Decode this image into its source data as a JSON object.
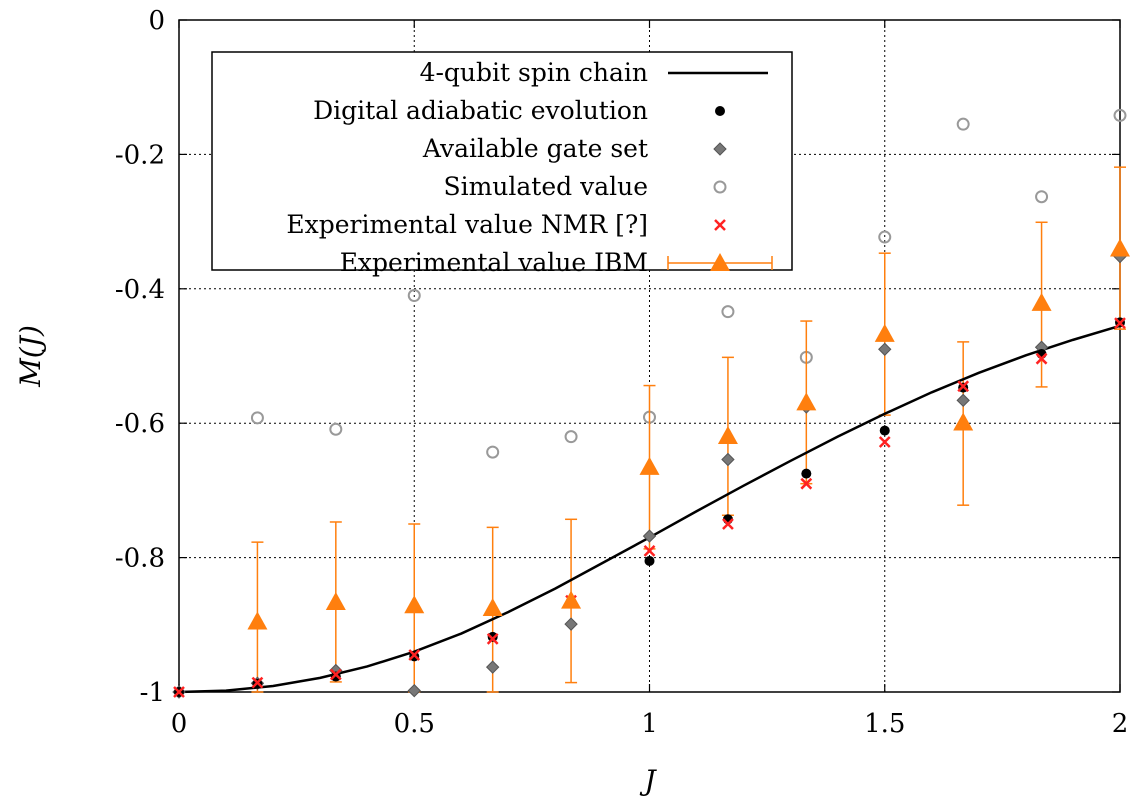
{
  "chart_data": {
    "type": "scatter",
    "xlabel": "J",
    "ylabel": "M(J)",
    "xlim": [
      0,
      2
    ],
    "ylim": [
      -1,
      0
    ],
    "x_ticks": [
      0,
      0.5,
      1,
      1.5,
      2
    ],
    "x_tick_labels": [
      "0",
      "0.5",
      "1",
      "1.5",
      "2"
    ],
    "y_ticks": [
      0,
      -0.2,
      -0.4,
      -0.6,
      -0.8,
      -1
    ],
    "y_tick_labels": [
      "0",
      "-0.2",
      "-0.4",
      "-0.6",
      "-0.8",
      "-1"
    ],
    "grid": true,
    "legend_position": "top-left",
    "series": [
      {
        "name": "4-qubit spin chain",
        "kind": "line",
        "color": "#000000",
        "x": [
          0,
          0.1,
          0.2,
          0.3,
          0.4,
          0.5,
          0.6,
          0.7,
          0.8,
          0.9,
          1.0,
          1.1,
          1.2,
          1.3,
          1.4,
          1.5,
          1.6,
          1.7,
          1.8,
          1.9,
          2.0
        ],
        "y": [
          -1.0,
          -0.998,
          -0.991,
          -0.979,
          -0.962,
          -0.94,
          -0.913,
          -0.881,
          -0.846,
          -0.808,
          -0.77,
          -0.731,
          -0.693,
          -0.656,
          -0.62,
          -0.586,
          -0.554,
          -0.525,
          -0.499,
          -0.476,
          -0.455
        ]
      },
      {
        "name": "Digital adiabatic evolution",
        "kind": "dot",
        "color": "#000000",
        "x": [
          0,
          0.1667,
          0.3333,
          0.5,
          0.6667,
          0.8333,
          1.0,
          1.1667,
          1.3333,
          1.5,
          1.6667,
          1.8333,
          2.0
        ],
        "y": [
          -1.0,
          -0.988,
          -0.977,
          -0.947,
          -0.918,
          -0.865,
          -0.805,
          -0.743,
          -0.675,
          -0.611,
          -0.547,
          -0.497,
          -0.45
        ]
      },
      {
        "name": "Available gate set",
        "kind": "diamond",
        "color": "#777777",
        "x": [
          0,
          0.1667,
          0.3333,
          0.5,
          0.6667,
          0.8333,
          1.0,
          1.1667,
          1.3333,
          1.5,
          1.6667,
          1.8333,
          2.0
        ],
        "y": [
          -1.0,
          -0.987,
          -0.968,
          -0.998,
          -0.963,
          -0.899,
          -0.768,
          -0.654,
          -0.576,
          -0.49,
          -0.566,
          -0.487,
          -0.352
        ]
      },
      {
        "name": "Simulated value",
        "kind": "circle",
        "color": "#999999",
        "x": [
          0.1667,
          0.3333,
          0.5,
          0.6667,
          0.8333,
          1.0,
          1.1667,
          1.3333,
          1.5,
          1.6667,
          1.8333,
          2.0
        ],
        "y": [
          -0.592,
          -0.609,
          -0.41,
          -0.643,
          -0.62,
          -0.591,
          -0.434,
          -0.502,
          -0.323,
          -0.155,
          -0.263,
          -0.142
        ]
      },
      {
        "name": "Experimental value NMR [?]",
        "kind": "cross",
        "color": "#ff2222",
        "x": [
          0,
          0.1667,
          0.3333,
          0.5,
          0.6667,
          0.8333,
          1.0,
          1.1667,
          1.3333,
          1.5,
          1.6667,
          1.8333,
          2.0
        ],
        "y": [
          -1.0,
          -0.986,
          -0.974,
          -0.945,
          -0.921,
          -0.864,
          -0.79,
          -0.75,
          -0.69,
          -0.628,
          -0.545,
          -0.504,
          -0.451
        ]
      },
      {
        "name": "Experimental value IBM",
        "kind": "triangle-errorbar",
        "color": "#ff7f0e",
        "x": [
          0.1667,
          0.3333,
          0.5,
          0.6667,
          0.8333,
          1.0,
          1.1667,
          1.3333,
          1.5,
          1.6667,
          1.8333,
          2.0
        ],
        "y": [
          -0.895,
          -0.866,
          -0.871,
          -0.875,
          -0.864,
          -0.665,
          -0.619,
          -0.569,
          -0.467,
          -0.599,
          -0.421,
          -0.34
        ],
        "yerr_low": [
          -1.0,
          -0.985,
          -1.0,
          -1.0,
          -0.986,
          -0.787,
          -0.737,
          -0.69,
          -0.588,
          -0.722,
          -0.546,
          -0.46
        ],
        "yerr_high": [
          -0.777,
          -0.747,
          -0.75,
          -0.755,
          -0.743,
          -0.544,
          -0.502,
          -0.448,
          -0.347,
          -0.479,
          -0.301,
          -0.219
        ]
      }
    ]
  }
}
